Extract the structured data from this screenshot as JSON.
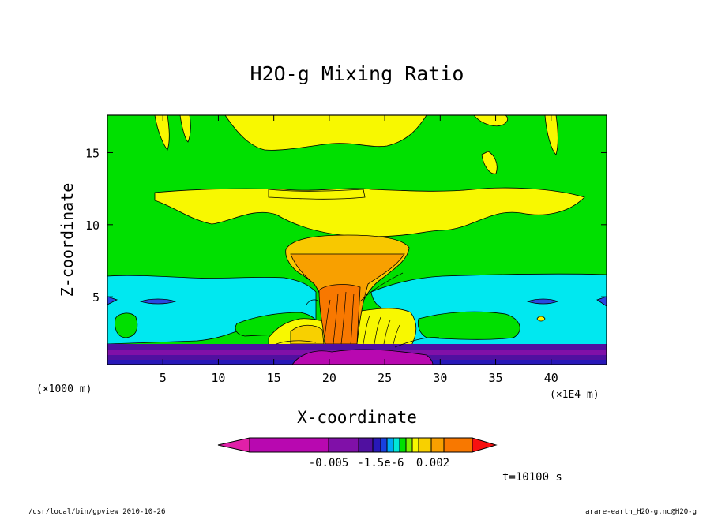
{
  "chart_data": {
    "type": "heatmap",
    "title": "H2O-g Mixing Ratio",
    "xlabel": "X-coordinate",
    "ylabel": "Z-coordinate",
    "x_unit": "(×1E4 m)",
    "y_unit": "(×1000 m)",
    "xlim": [
      0,
      45
    ],
    "ylim": [
      0.3,
      17.6
    ],
    "xticks": [
      5,
      10,
      15,
      20,
      25,
      30,
      35,
      40
    ],
    "yticks": [
      5,
      10,
      15
    ],
    "time_label": "t=10100 s",
    "colorbar": {
      "colors": [
        "#e020a8",
        "#b808b0",
        "#8010a8",
        "#5010a0",
        "#2818b8",
        "#1840e0",
        "#00a8f8",
        "#00e8d8",
        "#00e000",
        "#80f000",
        "#f8f800",
        "#f8d000",
        "#f8a000",
        "#f87800",
        "#f81010"
      ],
      "tick_labels": [
        "-0.005",
        "-1.5e-6",
        "0.002"
      ]
    }
  },
  "footer": {
    "left": "/usr/local/bin/gpview  2010-10-26",
    "right": "arare-earth_H2O-g.nc@H2O-g"
  }
}
